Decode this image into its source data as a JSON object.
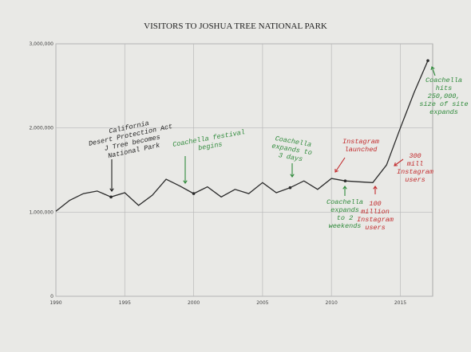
{
  "chart_data": {
    "type": "line",
    "title": "VISITORS TO JOSHUA TREE NATIONAL PARK",
    "x": [
      1990,
      1991,
      1992,
      1993,
      1994,
      1995,
      1996,
      1997,
      1998,
      1999,
      2000,
      2001,
      2002,
      2003,
      2004,
      2005,
      2006,
      2007,
      2008,
      2009,
      2010,
      2011,
      2012,
      2013,
      2014,
      2015,
      2016,
      2017
    ],
    "values": [
      1010000,
      1140000,
      1220000,
      1250000,
      1180000,
      1230000,
      1080000,
      1200000,
      1390000,
      1310000,
      1220000,
      1300000,
      1180000,
      1270000,
      1220000,
      1350000,
      1230000,
      1290000,
      1370000,
      1270000,
      1400000,
      1370000,
      1360000,
      1350000,
      1560000,
      2000000,
      2420000,
      2800000
    ],
    "color": "#2a2a2a",
    "xlim": [
      1990,
      2017
    ],
    "xticks": [
      1990,
      1995,
      2000,
      2005,
      2010,
      2015
    ],
    "ylim": [
      0,
      3000000
    ],
    "yticks": [
      0,
      {
        "value": 1000000,
        "label": "1,000,000"
      },
      {
        "value": 2000000,
        "label": "2,000,000"
      },
      {
        "value": 3000000,
        "label": "3,000,000"
      }
    ],
    "grid": true,
    "annotations": [
      {
        "text": [
          "California",
          "Desert Protection Act",
          "J Tree becomes",
          "National Park"
        ],
        "color": "#1e1e1e"
      },
      {
        "text": [
          "Coachella festival",
          "begins"
        ],
        "color": "#2f8a3b"
      },
      {
        "text": [
          "Coachella",
          "expands to",
          "3 days"
        ],
        "color": "#2f8a3b"
      },
      {
        "text": [
          "Instagram",
          "launched"
        ],
        "color": "#c22a2c"
      },
      {
        "text": [
          "Coachella",
          "expands",
          "to 2",
          "weekends"
        ],
        "color": "#2f8a3b"
      },
      {
        "text": [
          "100",
          "million",
          "Instagram",
          "users"
        ],
        "color": "#c22a2c"
      },
      {
        "text": [
          "300",
          "mill",
          "Instagram",
          "users"
        ],
        "color": "#c22a2c"
      },
      {
        "text": [
          "Coachella",
          "hits",
          "250,000,",
          "size of site",
          "expands"
        ],
        "color": "#2f8a3b"
      }
    ]
  }
}
